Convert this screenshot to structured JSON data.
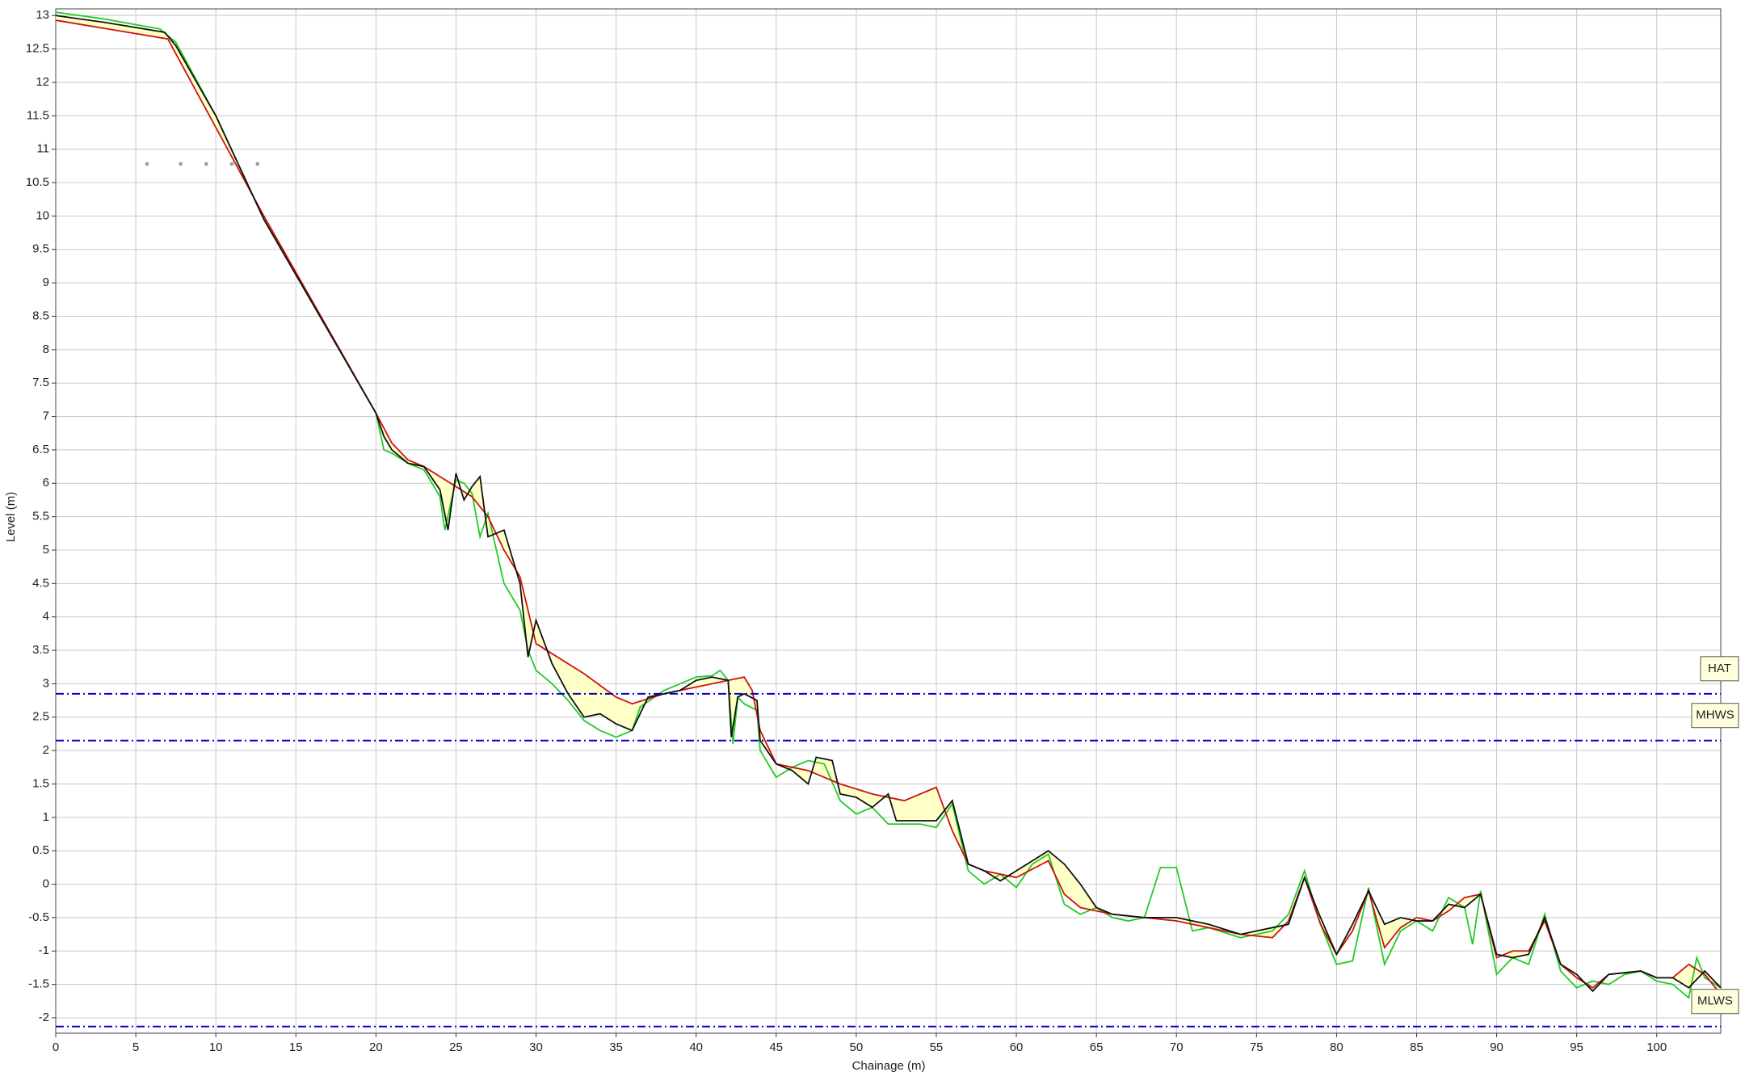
{
  "chart_data": {
    "type": "line",
    "x_label": "Chainage (m)",
    "y_label": "Level (m)",
    "xlim": [
      0,
      104
    ],
    "ylim": [
      -2.23,
      13.1
    ],
    "xticks": [
      0,
      5,
      10,
      15,
      20,
      25,
      30,
      35,
      40,
      45,
      50,
      55,
      60,
      65,
      70,
      75,
      80,
      85,
      90,
      95,
      100
    ],
    "yticks": [
      -2,
      -1.5,
      -1,
      -0.5,
      0,
      0.5,
      1,
      1.5,
      2,
      2.5,
      3,
      3.5,
      4,
      4.5,
      5,
      5.5,
      6,
      6.5,
      7,
      7.5,
      8,
      8.5,
      9,
      9.5,
      10,
      10.5,
      11,
      11.5,
      12,
      12.5,
      13
    ],
    "grid": true,
    "fill_between": {
      "series": [
        2,
        0
      ],
      "color": "#ffffc8"
    },
    "series": [
      {
        "color": "#cc1111",
        "x": [
          0,
          7,
          13,
          20,
          21,
          22,
          23,
          25,
          26,
          27,
          28,
          29,
          30,
          31,
          33,
          35,
          36,
          38,
          40,
          42,
          43,
          43.5,
          44,
          45,
          47,
          49,
          51,
          53,
          55,
          56,
          57,
          58,
          60,
          62,
          63,
          64,
          66,
          68,
          70,
          72,
          74,
          76,
          77,
          78,
          79,
          80,
          81,
          82,
          83,
          84,
          85,
          86,
          87,
          88,
          89,
          90,
          91,
          92,
          93,
          94,
          95,
          96,
          97,
          99,
          100,
          101,
          102,
          103,
          104
        ],
        "values": [
          12.93,
          12.65,
          10.0,
          7.05,
          6.6,
          6.35,
          6.25,
          5.95,
          5.8,
          5.5,
          5.0,
          4.6,
          3.6,
          3.45,
          3.15,
          2.8,
          2.7,
          2.85,
          2.95,
          3.05,
          3.1,
          2.9,
          2.3,
          1.8,
          1.7,
          1.5,
          1.35,
          1.25,
          1.45,
          0.8,
          0.3,
          0.2,
          0.1,
          0.35,
          -0.15,
          -0.35,
          -0.45,
          -0.5,
          -0.55,
          -0.65,
          -0.75,
          -0.8,
          -0.55,
          0.1,
          -0.6,
          -1.05,
          -0.7,
          -0.1,
          -0.95,
          -0.65,
          -0.5,
          -0.55,
          -0.4,
          -0.2,
          -0.15,
          -1.1,
          -1.0,
          -1.0,
          -0.55,
          -1.2,
          -1.4,
          -1.55,
          -1.35,
          -1.3,
          -1.4,
          -1.4,
          -1.2,
          -1.35,
          -1.65
        ]
      },
      {
        "color": "#22cc22",
        "x": [
          0,
          3,
          6.5,
          7.5,
          10,
          13,
          20,
          20.5,
          21,
          22,
          23,
          24,
          24.3,
          25,
          25.5,
          26,
          26.5,
          27,
          28,
          29,
          29.5,
          30,
          31,
          32,
          33,
          34,
          35,
          36,
          36.5,
          38,
          39,
          40,
          41,
          41.5,
          42,
          42.3,
          42.6,
          43,
          43.8,
          44,
          45,
          46,
          47,
          48,
          49,
          50,
          51,
          52,
          54,
          55,
          56,
          57,
          58,
          59,
          60,
          61,
          62,
          63,
          64,
          65,
          66,
          67,
          68,
          69,
          70,
          71,
          72,
          74,
          75,
          76,
          77,
          78,
          79,
          80,
          81,
          82,
          83,
          84,
          85,
          86,
          87,
          88,
          88.5,
          89,
          90,
          91,
          92,
          93,
          94,
          95,
          96,
          97,
          98,
          99,
          100,
          101,
          102,
          102.5,
          103,
          104
        ],
        "values": [
          13.05,
          12.95,
          12.8,
          12.6,
          11.5,
          9.95,
          7.05,
          6.5,
          6.45,
          6.3,
          6.2,
          5.8,
          5.3,
          6.05,
          6.0,
          5.85,
          5.2,
          5.55,
          4.5,
          4.1,
          3.5,
          3.2,
          3.0,
          2.75,
          2.45,
          2.3,
          2.2,
          2.3,
          2.65,
          2.9,
          3.0,
          3.1,
          3.12,
          3.2,
          3.05,
          2.1,
          2.8,
          2.7,
          2.6,
          2.0,
          1.6,
          1.75,
          1.85,
          1.8,
          1.25,
          1.05,
          1.15,
          0.9,
          0.9,
          0.85,
          1.2,
          0.2,
          0.0,
          0.15,
          -0.05,
          0.3,
          0.45,
          -0.3,
          -0.45,
          -0.35,
          -0.5,
          -0.55,
          -0.5,
          0.25,
          0.25,
          -0.7,
          -0.65,
          -0.8,
          -0.75,
          -0.7,
          -0.45,
          0.2,
          -0.6,
          -1.2,
          -1.15,
          -0.05,
          -1.2,
          -0.7,
          -0.55,
          -0.7,
          -0.2,
          -0.35,
          -0.9,
          -0.1,
          -1.35,
          -1.1,
          -1.2,
          -0.45,
          -1.3,
          -1.55,
          -1.45,
          -1.5,
          -1.35,
          -1.3,
          -1.45,
          -1.5,
          -1.7,
          -1.1,
          -1.4,
          -1.55
        ]
      },
      {
        "color": "#111111",
        "x": [
          0,
          3,
          6.8,
          7.5,
          10,
          13,
          20,
          20.5,
          21,
          22,
          23,
          24,
          24.5,
          25,
          25.5,
          26,
          26.5,
          27,
          28,
          29,
          29.5,
          30,
          31,
          32,
          33,
          34,
          35,
          36,
          37,
          38,
          39,
          40,
          41,
          42,
          42.2,
          42.6,
          43,
          43.8,
          44,
          45,
          46,
          47,
          47.5,
          48.5,
          49,
          50,
          51,
          52,
          52.5,
          55,
          56,
          57,
          58,
          59,
          60,
          61,
          62,
          63,
          64,
          65,
          66,
          68,
          70,
          72,
          74,
          75,
          76,
          77,
          78,
          79,
          80,
          81,
          82,
          83,
          84,
          85,
          86,
          87,
          88,
          89,
          90,
          91,
          92,
          93,
          94,
          95,
          96,
          97,
          99,
          100,
          101,
          102,
          103,
          104
        ],
        "values": [
          13.0,
          12.9,
          12.75,
          12.55,
          11.5,
          9.95,
          7.05,
          6.7,
          6.5,
          6.3,
          6.25,
          5.9,
          5.3,
          6.15,
          5.75,
          5.95,
          6.1,
          5.2,
          5.3,
          4.5,
          3.4,
          3.95,
          3.3,
          2.85,
          2.5,
          2.55,
          2.4,
          2.3,
          2.8,
          2.85,
          2.9,
          3.05,
          3.1,
          3.05,
          2.2,
          2.8,
          2.85,
          2.75,
          2.15,
          1.8,
          1.7,
          1.5,
          1.9,
          1.85,
          1.35,
          1.3,
          1.15,
          1.35,
          0.95,
          0.95,
          1.25,
          0.3,
          0.2,
          0.05,
          0.2,
          0.35,
          0.5,
          0.3,
          0.0,
          -0.35,
          -0.45,
          -0.5,
          -0.5,
          -0.6,
          -0.75,
          -0.7,
          -0.65,
          -0.6,
          0.1,
          -0.5,
          -1.05,
          -0.6,
          -0.1,
          -0.6,
          -0.5,
          -0.55,
          -0.55,
          -0.3,
          -0.35,
          -0.15,
          -1.05,
          -1.1,
          -1.05,
          -0.5,
          -1.2,
          -1.35,
          -1.6,
          -1.35,
          -1.3,
          -1.4,
          -1.4,
          -1.55,
          -1.3,
          -1.55
        ]
      }
    ],
    "markers": {
      "color": "#999999",
      "x": [
        5.7,
        7.8,
        9.4,
        11,
        12.6
      ],
      "values": [
        10.78,
        10.78,
        10.78,
        10.78,
        10.78
      ]
    },
    "reference_lines": [
      {
        "label": "HAT",
        "value": 2.85,
        "color": "#0000cc"
      },
      {
        "label": "MHWS",
        "value": 2.15,
        "color": "#0000cc"
      },
      {
        "label": "MLWS",
        "value": -2.13,
        "color": "#0000cc"
      }
    ]
  }
}
